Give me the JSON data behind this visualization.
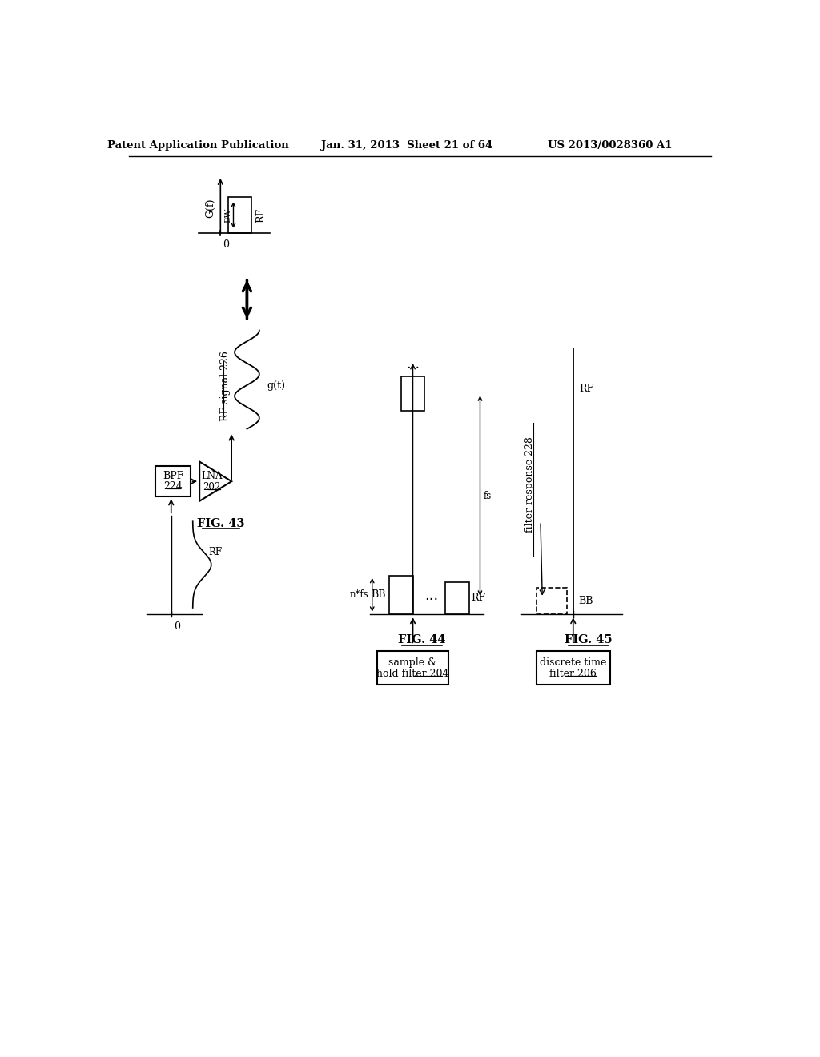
{
  "title_left": "Patent Application Publication",
  "title_mid": "Jan. 31, 2013  Sheet 21 of 64",
  "title_right": "US 2013/0028360 A1",
  "bg_color": "#ffffff",
  "fig_width": 10.24,
  "fig_height": 13.2
}
